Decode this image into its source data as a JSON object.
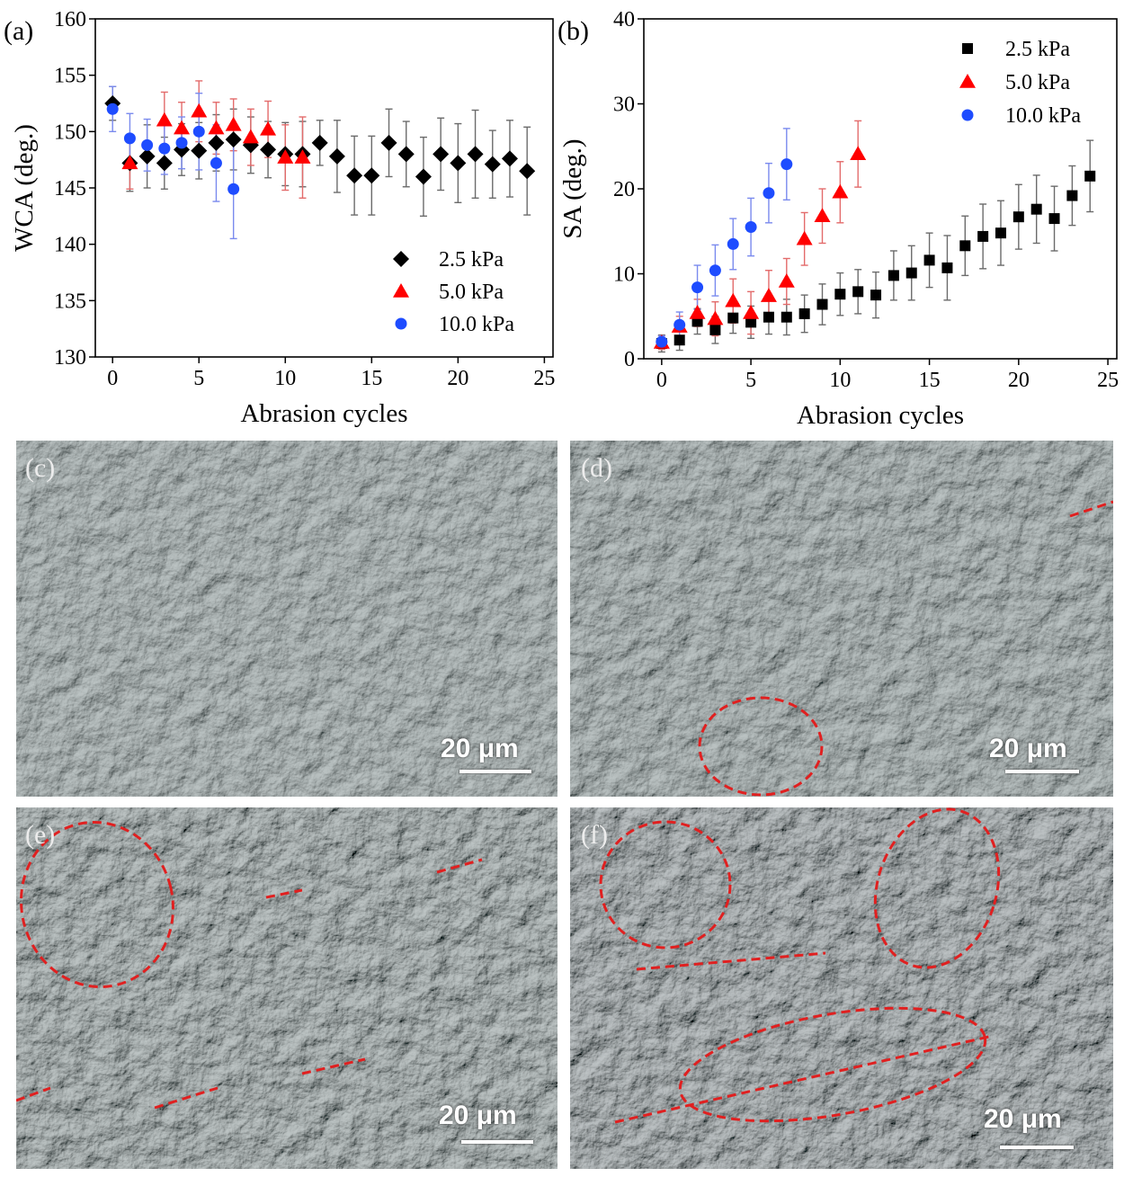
{
  "chart_data": [
    {
      "type": "scatter",
      "panel_label": "(a)",
      "xlabel": "Abrasion cycles",
      "ylabel": "WCA (deg.)",
      "xlim": [
        -1,
        25.5
      ],
      "ylim": [
        130,
        160
      ],
      "xticks": [
        0,
        5,
        10,
        15,
        20,
        25
      ],
      "yticks": [
        130,
        135,
        140,
        145,
        150,
        155,
        160
      ],
      "legend_position": "bottom-right",
      "series": [
        {
          "name": "2.5 kPa",
          "marker": "diamond",
          "color": "#000000",
          "err_color": "#6b6b6b",
          "x": [
            0,
            1,
            2,
            3,
            4,
            5,
            6,
            7,
            8,
            9,
            10,
            11,
            12,
            13,
            14,
            15,
            16,
            17,
            18,
            19,
            20,
            21,
            22,
            23,
            24
          ],
          "y": [
            152.5,
            147.2,
            147.8,
            147.2,
            148.4,
            148.3,
            149.0,
            149.3,
            148.8,
            148.4,
            148.0,
            148.0,
            149.0,
            147.8,
            146.1,
            146.1,
            149.0,
            148.0,
            146.0,
            148.0,
            147.2,
            148.0,
            147.1,
            147.6,
            146.5
          ],
          "err": [
            1.5,
            2.5,
            2.8,
            2.3,
            2.3,
            2.5,
            2.5,
            2.7,
            2.5,
            2.5,
            2.8,
            2.9,
            2.0,
            3.2,
            3.5,
            3.5,
            3.0,
            2.9,
            3.5,
            3.2,
            3.5,
            3.9,
            3.0,
            3.4,
            3.9
          ]
        },
        {
          "name": "5.0 kPa",
          "marker": "triangle",
          "color": "#ff0000",
          "err_color": "#e36b6b",
          "x": [
            1,
            3,
            4,
            5,
            6,
            7,
            8,
            9,
            10,
            11
          ],
          "y": [
            147.2,
            151.0,
            150.3,
            151.8,
            150.3,
            150.6,
            149.5,
            150.2,
            147.7,
            147.7
          ],
          "err": [
            2.3,
            2.5,
            2.3,
            2.7,
            2.3,
            2.3,
            2.5,
            2.5,
            2.9,
            3.6
          ]
        },
        {
          "name": "10.0 kPa",
          "marker": "circle",
          "color": "#1e4cff",
          "err_color": "#7a8aee",
          "x": [
            0,
            1,
            2,
            3,
            4,
            5,
            6,
            7
          ],
          "y": [
            152.0,
            149.4,
            148.8,
            148.5,
            149.0,
            150.0,
            147.2,
            144.9
          ],
          "err": [
            2.0,
            2.2,
            2.3,
            2.3,
            2.3,
            3.4,
            3.4,
            4.4
          ]
        }
      ]
    },
    {
      "type": "scatter",
      "panel_label": "(b)",
      "xlabel": "Abrasion cycles",
      "ylabel": "SA (deg.)",
      "xlim": [
        -1,
        25.5
      ],
      "ylim": [
        0,
        40
      ],
      "xticks": [
        0,
        5,
        10,
        15,
        20,
        25
      ],
      "yticks": [
        0,
        10,
        20,
        30,
        40
      ],
      "legend_position": "top-right",
      "series": [
        {
          "name": "2.5 kPa",
          "marker": "square",
          "color": "#000000",
          "err_color": "#6b6b6b",
          "x": [
            0,
            1,
            2,
            3,
            4,
            5,
            6,
            7,
            8,
            9,
            10,
            11,
            12,
            13,
            14,
            15,
            16,
            17,
            18,
            19,
            20,
            21,
            22,
            23,
            24
          ],
          "y": [
            1.8,
            2.2,
            4.4,
            3.4,
            4.8,
            4.3,
            4.9,
            4.9,
            5.3,
            6.4,
            7.6,
            7.9,
            7.5,
            9.8,
            10.1,
            11.6,
            10.7,
            13.3,
            14.4,
            14.8,
            16.7,
            17.6,
            16.5,
            19.2,
            21.5
          ],
          "err": [
            1.0,
            1.2,
            1.5,
            1.6,
            1.8,
            1.9,
            2.0,
            2.1,
            2.2,
            2.4,
            2.5,
            2.6,
            2.7,
            2.9,
            3.2,
            3.2,
            3.8,
            3.5,
            3.8,
            3.8,
            3.8,
            4.0,
            3.8,
            3.5,
            4.2
          ]
        },
        {
          "name": "5.0 kPa",
          "marker": "triangle",
          "color": "#ff0000",
          "err_color": "#e36b6b",
          "x": [
            0,
            1,
            2,
            3,
            4,
            5,
            6,
            7,
            8,
            9,
            10,
            11
          ],
          "y": [
            1.9,
            3.8,
            5.4,
            4.7,
            6.8,
            5.4,
            7.4,
            9.1,
            14.1,
            16.8,
            19.6,
            24.1
          ],
          "err": [
            0.8,
            1.2,
            1.6,
            2.0,
            2.6,
            2.5,
            3.0,
            2.7,
            3.1,
            3.2,
            3.6,
            3.9
          ]
        },
        {
          "name": "10.0 kPa",
          "marker": "circle",
          "color": "#1e4cff",
          "err_color": "#7a8aee",
          "x": [
            0,
            1,
            2,
            3,
            4,
            5,
            6,
            7
          ],
          "y": [
            2.0,
            4.0,
            8.4,
            10.4,
            13.5,
            15.5,
            19.5,
            22.9
          ],
          "err": [
            0.7,
            1.5,
            2.6,
            3.0,
            3.0,
            3.4,
            3.5,
            4.2
          ]
        }
      ]
    }
  ],
  "images": [
    {
      "label": "(c)",
      "scale": "20 μm"
    },
    {
      "label": "(d)",
      "scale": "20 μm"
    },
    {
      "label": "(e)",
      "scale": "20 μm"
    },
    {
      "label": "(f)",
      "scale": "20 μm"
    }
  ]
}
